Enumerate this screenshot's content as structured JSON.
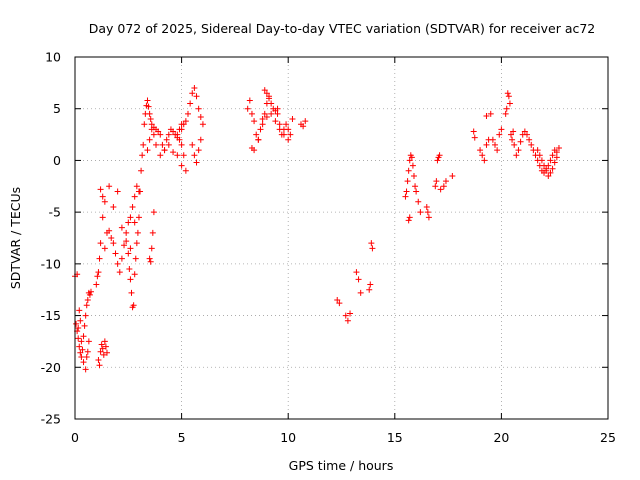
{
  "chart_data": {
    "type": "scatter",
    "title": "Day 072 of 2025, Sidereal Day-to-day VTEC variation (SDTVAR) for receiver ac72",
    "xlabel": "GPS time / hours",
    "ylabel": "SDTVAR / TECUs",
    "xlim": [
      0,
      25
    ],
    "ylim": [
      -25,
      10
    ],
    "xticks": [
      0,
      5,
      10,
      15,
      20,
      25
    ],
    "yticks": [
      10,
      5,
      0,
      -5,
      -10,
      -15,
      -20,
      -25
    ],
    "xtick_labels": [
      "0",
      "5",
      "10",
      "15",
      "20",
      "25"
    ],
    "ytick_labels": [
      "10",
      "5",
      "0",
      "-5",
      "-10",
      "-15",
      "-20",
      "-25"
    ],
    "grid": true,
    "marker": "plus",
    "marker_color": "#ff0000",
    "series": [
      {
        "name": "SDTVAR",
        "x": [
          0.0,
          0.05,
          0.1,
          0.15,
          0.2,
          0.25,
          0.3,
          0.35,
          0.4,
          0.45,
          0.5,
          0.55,
          0.6,
          0.65,
          0.1,
          0.15,
          0.2,
          0.25,
          0.3,
          0.4,
          0.5,
          0.55,
          0.6,
          0.65,
          0.7,
          0.75,
          1.1,
          1.15,
          1.2,
          1.25,
          1.3,
          1.35,
          1.4,
          1.45,
          1.5,
          1.0,
          1.05,
          1.1,
          1.15,
          1.2,
          1.3,
          1.4,
          1.5,
          1.6,
          1.7,
          1.8,
          1.9,
          2.0,
          2.1,
          2.2,
          2.3,
          2.4,
          2.5,
          2.6,
          2.7,
          2.8,
          2.9,
          3.0,
          1.2,
          1.3,
          1.4,
          1.6,
          1.8,
          2.0,
          2.2,
          2.4,
          2.6,
          2.8,
          2.5,
          2.55,
          2.6,
          2.65,
          2.7,
          2.75,
          2.8,
          2.85,
          2.9,
          2.95,
          3.0,
          3.05,
          3.1,
          3.15,
          3.2,
          3.25,
          3.3,
          3.35,
          3.4,
          3.45,
          3.5,
          3.55,
          3.6,
          3.7,
          3.8,
          3.9,
          4.0,
          4.1,
          4.2,
          4.3,
          4.4,
          4.5,
          4.6,
          4.7,
          4.8,
          4.9,
          5.0,
          5.1,
          5.2,
          3.4,
          3.5,
          3.6,
          3.7,
          3.8,
          4.0,
          4.2,
          4.4,
          4.6,
          4.8,
          5.0,
          3.5,
          3.55,
          3.6,
          3.65,
          3.7,
          4.8,
          4.9,
          5.0,
          5.0,
          5.1,
          5.2,
          5.3,
          5.4,
          5.5,
          5.6,
          5.7,
          5.8,
          5.9,
          6.0,
          5.5,
          5.6,
          5.7,
          5.8,
          5.9,
          8.1,
          8.2,
          8.3,
          8.4,
          8.5,
          8.6,
          8.7,
          8.8,
          8.9,
          9.0,
          9.1,
          9.2,
          9.3,
          9.4,
          9.5,
          9.6,
          9.7,
          9.8,
          9.9,
          10.0,
          10.1,
          10.2,
          8.3,
          8.4,
          8.6,
          8.8,
          9.0,
          9.2,
          9.4,
          9.6,
          9.8,
          10.0,
          8.9,
          9.0,
          9.1,
          9.5,
          10.6,
          10.7,
          10.8,
          12.3,
          12.4,
          12.7,
          12.8,
          12.9,
          13.2,
          13.3,
          13.4,
          13.8,
          13.85,
          13.9,
          13.95,
          15.5,
          15.55,
          15.6,
          15.65,
          15.7,
          15.75,
          15.8,
          15.85,
          15.9,
          15.95,
          16.0,
          16.1,
          16.2,
          15.65,
          15.7,
          16.5,
          16.55,
          16.6,
          16.9,
          16.95,
          17.0,
          17.05,
          17.1,
          17.15,
          17.3,
          17.4,
          17.7,
          18.7,
          18.75,
          19.0,
          19.1,
          19.2,
          19.3,
          19.4,
          19.5,
          19.6,
          19.7,
          19.8,
          19.9,
          20.0,
          19.3,
          20.2,
          20.25,
          20.3,
          20.35,
          20.4,
          20.45,
          20.5,
          20.55,
          20.6,
          20.7,
          20.8,
          20.9,
          21.0,
          21.1,
          21.2,
          21.3,
          21.4,
          21.5,
          21.6,
          21.7,
          21.8,
          21.9,
          22.0,
          22.1,
          22.2,
          22.3,
          22.4,
          22.5,
          22.6,
          22.7,
          21.7,
          21.8,
          21.9,
          22.0,
          22.1,
          22.2,
          22.3,
          22.4,
          22.5,
          22.6
        ],
        "y": [
          -11.2,
          -15.8,
          -16.5,
          -17.2,
          -18.0,
          -18.6,
          -19.0,
          -18.3,
          -17.0,
          -16.0,
          -15.0,
          -14.0,
          -13.5,
          -12.8,
          -11.0,
          -16.2,
          -14.5,
          -15.5,
          -17.5,
          -19.5,
          -20.2,
          -19.0,
          -18.5,
          -17.5,
          -13.0,
          -12.7,
          -19.3,
          -19.8,
          -18.5,
          -17.8,
          -18.2,
          -18.8,
          -17.5,
          -18.0,
          -18.6,
          -12.0,
          -11.2,
          -10.8,
          -9.5,
          -8.0,
          -5.5,
          -8.5,
          -7.0,
          -6.8,
          -7.5,
          -8.0,
          -9.0,
          -10.0,
          -10.8,
          -9.5,
          -8.2,
          -7.0,
          -6.0,
          -5.5,
          -4.5,
          -3.5,
          -2.5,
          -3.0,
          -2.8,
          -3.5,
          -4.0,
          -2.5,
          -4.5,
          -3.0,
          -6.5,
          -7.8,
          -8.5,
          -6.0,
          -9.0,
          -10.5,
          -11.5,
          -12.8,
          -14.2,
          -14.0,
          -11.0,
          -9.5,
          -8.0,
          -7.0,
          -5.5,
          -3.0,
          -1.0,
          0.5,
          1.5,
          3.5,
          4.5,
          5.3,
          5.8,
          5.2,
          4.5,
          4.0,
          3.5,
          3.2,
          3.0,
          2.8,
          2.5,
          1.5,
          1.0,
          2.0,
          2.5,
          3.0,
          2.8,
          2.5,
          2.2,
          2.0,
          1.5,
          0.5,
          -1.0,
          1.0,
          2.0,
          3.0,
          2.5,
          1.5,
          0.5,
          1.0,
          1.5,
          0.8,
          0.5,
          -0.5,
          -9.5,
          -9.8,
          -8.5,
          -7.0,
          -5.0,
          2.5,
          3.0,
          3.5,
          3.0,
          3.5,
          3.8,
          4.5,
          5.5,
          6.5,
          7.0,
          6.2,
          5.0,
          4.2,
          3.5,
          1.5,
          0.5,
          -0.2,
          1.0,
          2.0,
          5.0,
          5.8,
          4.5,
          3.8,
          2.5,
          2.0,
          3.0,
          4.0,
          4.5,
          5.5,
          6.0,
          5.5,
          5.0,
          4.8,
          4.5,
          3.5,
          2.5,
          3.0,
          3.5,
          3.0,
          2.5,
          4.0,
          1.2,
          1.0,
          2.0,
          3.5,
          4.2,
          4.5,
          3.8,
          3.0,
          2.5,
          2.0,
          6.8,
          6.5,
          6.2,
          5.0,
          3.5,
          3.3,
          3.8,
          -13.5,
          -13.8,
          -15.0,
          -15.5,
          -14.8,
          -10.8,
          -11.5,
          -12.8,
          -12.5,
          -12.0,
          -8.0,
          -8.5,
          -3.5,
          -3.0,
          -2.0,
          -1.0,
          0.0,
          0.5,
          0.3,
          -0.5,
          -1.5,
          -2.5,
          -3.0,
          -4.0,
          -5.0,
          -5.8,
          -5.5,
          -4.5,
          -5.0,
          -5.5,
          -2.5,
          -2.0,
          0.0,
          0.3,
          0.5,
          -2.8,
          -2.5,
          -2.0,
          -1.5,
          2.8,
          2.2,
          1.0,
          0.5,
          0.0,
          1.5,
          2.0,
          4.5,
          2.0,
          1.5,
          1.0,
          2.5,
          3.0,
          4.3,
          4.5,
          5.0,
          6.5,
          6.2,
          5.5,
          2.5,
          2.0,
          2.8,
          1.5,
          0.5,
          1.0,
          1.8,
          2.5,
          2.8,
          2.5,
          2.0,
          1.5,
          1.0,
          0.5,
          0.0,
          -0.5,
          -1.0,
          -1.2,
          -0.8,
          -0.5,
          0.0,
          0.5,
          1.0,
          0.8,
          1.2,
          1.0,
          0.5,
          0.0,
          -0.5,
          -1.0,
          -1.5,
          -1.2,
          -0.8,
          -0.2,
          0.3
        ]
      }
    ]
  }
}
